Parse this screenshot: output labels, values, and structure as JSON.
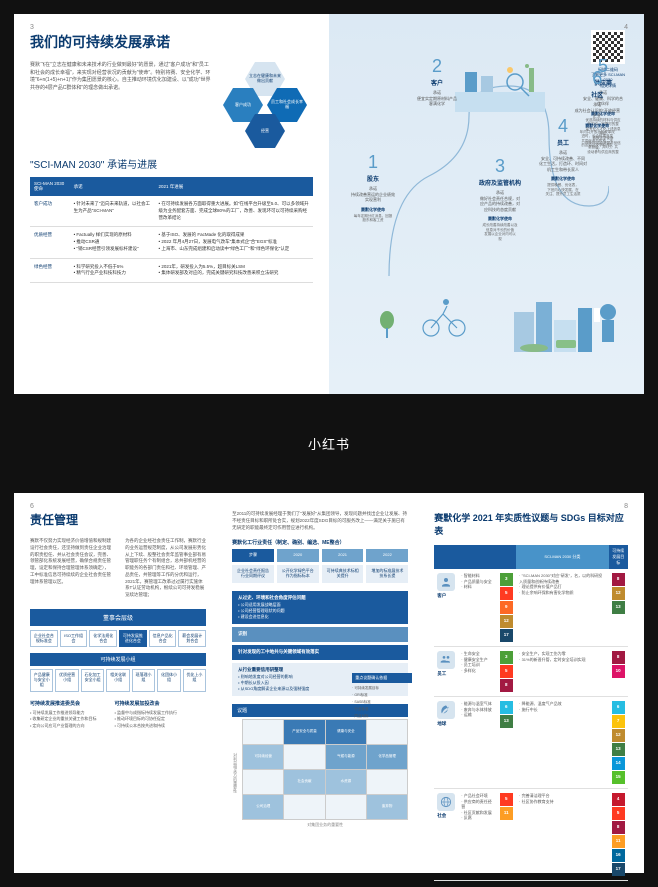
{
  "watermark": "小红书",
  "colors": {
    "primary": "#1a5a9e",
    "accent": "#4893c9",
    "light_bg": "#e6f0f8",
    "hex": [
      "#d6e4f0",
      "#2a7fbf",
      "#0f6bb5",
      "#1a5a9e"
    ],
    "sdg": {
      "1": "#e5243b",
      "2": "#dda63a",
      "3": "#4c9f38",
      "4": "#c5192d",
      "5": "#ff3a21",
      "6": "#26bde2",
      "7": "#fcc30b",
      "8": "#a21942",
      "9": "#fd6925",
      "10": "#dd1367",
      "11": "#fd9d24",
      "12": "#bf8b2e",
      "13": "#3f7e44",
      "14": "#0a97d9",
      "15": "#56c02b",
      "16": "#00689d",
      "17": "#19486a"
    }
  },
  "spread1": {
    "page_l": "3",
    "page_r": "4",
    "title": "我们的可持续发展承诺",
    "intro": "赛默飞在\"立志在健康和未来技术的行业做到最好\"的愿景，通过\"客户成功\"和\"员工和社会的成长幸福\"，来实现对经营状况的贡献为\"使命\"。特别将赛、安全化学、环境\"6+n(1+5)+n+1)\"作为集团愿景的核心。自主推动环境优化加建设、以\"成功\"世界共存的4层产品C群体和\"的理念做出承诺。",
    "hex_labels": [
      "立志在健康和未来做出贡献",
      "客户成功",
      "员工和社会成长幸福",
      "经营"
    ],
    "table_heading": "\"SCI-MAN 2030\" 承诺与进展",
    "table_headers": [
      "SCI-MAN 2030 使命",
      "承诺",
      "2021 年进展"
    ],
    "table_rows": [
      {
        "c0": "客户成功",
        "c1": "• 针对未来了\"迈向未来轨道，以社会工生为产品\"SCI-MAN\"",
        "c2": "• 在可持续发展各方面取得重大进展。如\"在线平台升级至5.0、可以多领域升级为业务配套方面、完成全球80%的工厂，改善、发现环可以可持续采购经营改革结论"
      },
      {
        "c0": "优质经营",
        "c1": "• Factually 样们实现的原材料\n• 推动CSR通\n• \"销CSR经营引领发展标杆建设\"",
        "c2": "• 基于ISO、发展的 FacMade 化的取得成果\n• 2022 年月4月27日，发展电气改车\"集本式企\"合\"EGS\"标准\n• 上海市、山东完成组建和启动读中\"绿色工厂\"和\"绿色环保化\"认定"
      },
      {
        "c0": "绿色经营",
        "c1": "• 科学研究投入不低于5%\n• 精气行业产业科技科技力",
        "c2": "• 2021年，研发投入为5.5%，超目标关LSM\n• 集体研发部及对应的，完成关键研究科技改善采积立法研究"
      }
    ],
    "qr_caption": "扫描二维码\n了解更多 SCI-MAN 2030\n相关详情",
    "journey_steps": [
      {
        "n": "1",
        "name": "股东",
        "desc": "承诺\n持续改善营运的企业绩效\n实现营利",
        "sub": "赛默化学使命",
        "sd": "每年定期分红派息，回报\n股东和客工资"
      },
      {
        "n": "2",
        "name": "客户",
        "desc": "承诺\n便宜实定期原材料产品\n客满化学"
      },
      {
        "n": "3",
        "name": "政府及监管机构",
        "desc": "承诺\n做好社会责任合规，对\n应产品的持续改善，对\n应科技的态度贡献",
        "sub": "赛默化学使命",
        "sd": "成长改善持续改善以及\n信息对不长的价值\n发展以企业对内可以\n现"
      },
      {
        "n": "4",
        "name": "员工",
        "desc": "承诺\n安全、可持续改善、不同\n化工生活，打造环、时间对\n机工生和带长家人",
        "sub": "赛默化学使命",
        "sd": "提供晚餐、优化表，\n下班内心快发展、在\n关注、提升员工生活质"
      },
      {
        "n": "5",
        "name": "供应商",
        "desc": "承诺\n安全、健康、科学的合\n作伙伴",
        "sub": "赛默化学使命",
        "sd": "优选持续的材料与供应\n商平均，完善时的整\n量专业人才化上述信息\n前进\n赛默化学使命\n明RSS结合开展产品信\n息链接、共5万，共\n设动参与供应商的整"
      },
      {
        "n": "6",
        "name": "社区",
        "desc": "承诺\n成为社会认识的\"开放经营\n企业\"",
        "sub": "赛默化学使命",
        "sd": "年内共开放社区改革改\n进时，长合科技开发\n共同化参与机构，不\n的区合社交学的开发\n力"
      }
    ]
  },
  "spread2": {
    "page_l": "6",
    "page_r": "8",
    "left": {
      "title": "责任管理",
      "p1": "赛默不仅努力实现经济价值增值和规制建设行社会责任，还坚持做到责任企业治理的职责担任、并从社会责任会议，完善、领管部化系统发展经营，确保合规责任管理，设定和保持合理管理体系须确定），工中标准信息可持续续的企业社会责任管理体系管理以区。",
      "p2": "为各的企业经社会责任工作制，赛默行业的业务运营规范制度，从公司发展形势化从上下续、股整社会责年监管事业部有易管理职任务个有制组合，总共部机经营的职能务的各部门责任和社、环境管理、产品责任，共管理等工作的分优和运行，2021年，赛管理工改革过过属行实施体系T认证劳动机构，根续公司可持发稳展览续达管理；",
      "org_title": "董事会层级",
      "org_level1": [
        "企业社会合规标准会",
        "ISO工作组会",
        "化学法规化合会",
        "可持发展推进化合会",
        "信息产品化合会",
        "薪会发展计划合会"
      ],
      "org_sub": "可持续发展小组",
      "org_level2": [
        "产品健康与安全小组",
        "优质经营小组",
        "石化加工安全小组",
        "相关化联小组",
        "现落理小组",
        "化团体小组",
        "优化上小组"
      ],
      "bul_cols": [
        {
          "h": "可持续发展推进委员会",
          "items": [
            "• 可持续发展工作推进领导能力",
            "• 收集研定企业的重技关键工作和目标",
            "• 定向公司应可产业管理的方向"
          ]
        },
        {
          "h": "可持续发展加投改会",
          "items": [
            "• 监督中与成指标持续发展工作执行",
            "• 推动环境目标的可协任促定",
            "• 可持续公本合按共进和持续"
          ]
        }
      ]
    },
    "mid": {
      "intro": "至2011的可持续发展经理于我们了\"发展好\"从集团领导，发现问题并找出企业让发展、持不经责任目标和职所处合实，规划2022年度SDG目标的可服务改上——满足关于施已有无研定的职能最终定可作用营应进行机构。",
      "proc_title": "赛默化工行业责任（制定、确别、编选、ME整合）",
      "proc_headers": [
        "步骤",
        "2020",
        "2021",
        "2022"
      ],
      "proc_rows": [
        [
          "企业社会责任报告行业同期评议",
          "公开化学绿色平台作为指标标本",
          "可持续典技术标相关提升",
          "增加的标准展技术技系长提"
        ]
      ],
      "bands": [
        {
          "cls": "dark",
          "t": "从过史、环境和社会角度评估问题",
          "d": "• 公司适用发展战略层面\n• 公司经营管理现状的问题\n• 建设会进信息化"
        },
        {
          "cls": "mid-b",
          "t": "识别",
          "d": ""
        },
        {
          "cls": "dark",
          "t": "针对发现的工中地共与关键领域有效落实",
          "d": ""
        },
        {
          "cls": "light",
          "t": "从行业重要信用研整理",
          "d": "• 则响地发度对公司经营的影响\n• 中期长从投入因\n• 从SDG角度解读企业来源以及强制强度"
        }
      ],
      "matrix_title": "议题",
      "matrix_cells": [
        "",
        "产品安全与质量",
        "健康与安全",
        "",
        "可持续经营",
        "",
        "气候与能源",
        "化学品管理",
        "",
        "社会贡献",
        "水资源",
        "",
        "公司治理",
        "",
        "",
        "废弃物"
      ],
      "matrix_levels": [
        0,
        3,
        3,
        0,
        1,
        0,
        2,
        2,
        0,
        1,
        1,
        0,
        1,
        0,
        0,
        1
      ],
      "matrix_x": "对集团业务的重要性",
      "side_title": "重点议题确认依据",
      "side_items": [
        "· 可持续发展目标",
        "· GRI标准",
        "· SASB标准",
        "· 行业标准",
        "· 同业对标"
      ]
    },
    "right": {
      "title": "赛默化学 2021 年实质性议题与 SDGs 目标对应表",
      "headers": [
        "",
        "",
        "SCI-MAN 2030 分类",
        "可持续发展目标"
      ],
      "rows": [
        {
          "cat": "客户",
          "icon": "user",
          "issues": "· 智能材料\n· 产品质量与安全\n· 材料",
          "sdg1": [
            "3",
            "5",
            "9",
            "12",
            "17"
          ],
          "desc": "· \"SCI-MAN 2030\"对应\"研发\"，名，以的科研投入质量和创新持续改善\n· 理论提供有价值产品打\n· 防止余响环保和有害化学物质",
          "sdg2": [
            "8",
            "12",
            "13"
          ]
        },
        {
          "cat": "员工",
          "icon": "people",
          "issues": "· 生命安全\n· 健康安全生产\n· 员工培训\n· 多样化",
          "sdg1": [
            "3",
            "5",
            "8"
          ],
          "desc": "· 安全生产，实现工伤为零\n· 31%的新晋升管，定时安全培训实现",
          "sdg2": [
            "8",
            "10"
          ]
        },
        {
          "cat": "地球",
          "icon": "leaf",
          "issues": "· 能源与温室气体\n· 废弃与水体排放\n· 运输",
          "sdg1": [
            "6",
            "13"
          ],
          "desc": "· 降能源、温度气产品效\n· 施行中长",
          "sdg2": [
            "6",
            "7",
            "12",
            "13",
            "14",
            "15"
          ]
        },
        {
          "cat": "社会",
          "icon": "globe",
          "issues": "· 产品社会环境\n· 供应商的责任经营\n· 社区贡献和发展\n· 反腐",
          "sdg1": [
            "5",
            "11"
          ],
          "desc": "· 完善清洁理平台\n· 社区协作教育支持",
          "sdg2": [
            "4",
            "5",
            "8",
            "11",
            "16",
            "17"
          ]
        }
      ]
    }
  }
}
